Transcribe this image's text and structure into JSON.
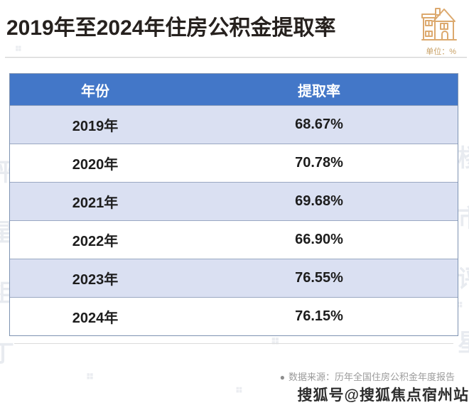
{
  "header": {
    "title": "2019年至2024年住房公积金提取率",
    "unit_label": "单位：%"
  },
  "table": {
    "columns": [
      "年份",
      "提取率"
    ],
    "rows": [
      {
        "year": "2019年",
        "rate": "68.67%"
      },
      {
        "year": "2020年",
        "rate": "70.78%"
      },
      {
        "year": "2021年",
        "rate": "69.68%"
      },
      {
        "year": "2022年",
        "rate": "66.90%"
      },
      {
        "year": "2023年",
        "rate": "76.55%"
      },
      {
        "year": "2024年",
        "rate": "76.15%"
      }
    ]
  },
  "chart_data": {
    "type": "table",
    "title": "2019年至2024年住房公积金提取率",
    "unit": "%",
    "columns": [
      "年份",
      "提取率"
    ],
    "categories": [
      "2019年",
      "2020年",
      "2021年",
      "2022年",
      "2023年",
      "2024年"
    ],
    "values": [
      68.67,
      70.78,
      69.68,
      66.9,
      76.55,
      76.15
    ],
    "source": "数据来源：历年全国住房公积金年度报告"
  },
  "footer": {
    "source_bullet": "●",
    "source_text": "数据来源：历年全国住房公积金年度报告",
    "watermark_text": "搜狐号@搜狐焦点宿州站"
  },
  "colors": {
    "header_blue": "#4377c8",
    "row_alt_blue": "#dae0f2",
    "table_border": "#7e93b2",
    "accent_tan": "#d4a268",
    "title_black": "#26211e",
    "source_gray": "#9a9a9a"
  },
  "background_watermarks": {
    "edge_chars": [
      "评",
      "星",
      "祖",
      "丁",
      "楼",
      "市"
    ],
    "pattern_glyph": "❖"
  }
}
